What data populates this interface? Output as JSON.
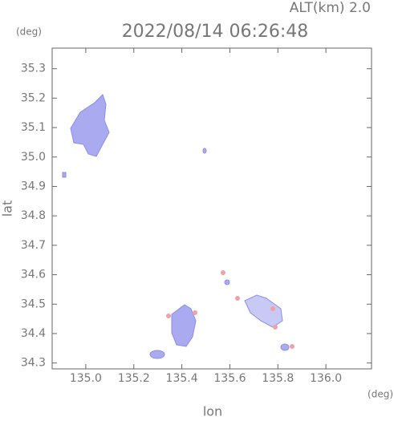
{
  "chart_data": {
    "type": "map",
    "title": "2022/08/14 06:26:48",
    "subtitle": "ALT(km) 2.0",
    "y_unit": "(deg)",
    "x_unit": "(deg)",
    "x_label": "lon",
    "y_label": "lat",
    "xlim": [
      134.86,
      136.19
    ],
    "ylim": [
      34.28,
      35.37
    ],
    "xticks": [
      {
        "value": 135,
        "label": "135.0"
      },
      135.2,
      135.4,
      135.6,
      135.8,
      {
        "value": 136,
        "label": "136.0"
      }
    ],
    "yticks": [
      34.3,
      34.4,
      34.5,
      34.6,
      34.7,
      34.8,
      34.9,
      {
        "value": 35,
        "label": "35.0"
      },
      35.1,
      35.2,
      35.3
    ]
  }
}
